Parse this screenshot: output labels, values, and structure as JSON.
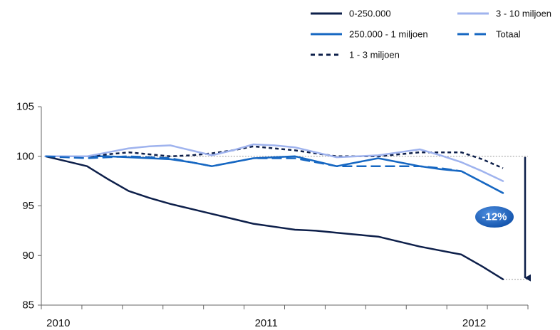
{
  "chart_data": {
    "type": "line",
    "title": "",
    "xlabel": "",
    "ylabel": "",
    "x_labels": [
      "2010",
      "2011",
      "2012"
    ],
    "x_label_positions": [
      0,
      5,
      10
    ],
    "x": [
      0,
      0.5,
      1,
      1.5,
      2,
      2.5,
      3,
      3.5,
      4,
      4.5,
      5,
      5.5,
      6,
      6.5,
      7,
      7.5,
      8,
      8.5,
      9,
      9.5,
      10,
      10.5,
      11
    ],
    "xlim": [
      -0.1,
      11.6
    ],
    "ylim": [
      85,
      105
    ],
    "yticks": [
      "85",
      "90",
      "95",
      "100",
      "105"
    ],
    "series": [
      {
        "name": "0-250.000",
        "color": "#0d1f4a",
        "dash": "solid",
        "width": 2.5,
        "values": [
          100,
          99.5,
          99.0,
          97.7,
          96.5,
          95.8,
          95.2,
          94.7,
          94.2,
          93.7,
          93.2,
          92.9,
          92.6,
          92.5,
          92.3,
          92.1,
          91.9,
          91.4,
          90.9,
          90.5,
          90.1,
          88.9,
          87.6
        ]
      },
      {
        "name": "250.000 - 1 miljoen",
        "color": "#1667c2",
        "dash": "solid",
        "width": 2.5,
        "values": [
          100,
          100.0,
          100.0,
          100.0,
          99.9,
          99.8,
          99.7,
          99.4,
          99.0,
          99.4,
          99.8,
          99.9,
          100.0,
          99.5,
          99.0,
          99.4,
          99.8,
          99.4,
          99.0,
          98.7,
          98.5,
          97.4,
          96.3
        ]
      },
      {
        "name": "1 - 3 miljoen",
        "color": "#0d1f4a",
        "dash": "dotted",
        "width": 2.5,
        "values": [
          100,
          100.0,
          100.0,
          100.2,
          100.4,
          100.2,
          100.0,
          100.1,
          100.3,
          100.6,
          101.0,
          100.8,
          100.6,
          100.3,
          100.0,
          100.0,
          100.0,
          100.2,
          100.4,
          100.4,
          100.4,
          99.7,
          98.8
        ]
      },
      {
        "name": "3 - 10 miljoen",
        "color": "#9fb3ee",
        "dash": "solid",
        "width": 2.5,
        "values": [
          100,
          100.0,
          100.0,
          100.4,
          100.8,
          101.0,
          101.1,
          100.6,
          100.1,
          100.6,
          101.2,
          101.1,
          100.9,
          100.4,
          99.9,
          100.0,
          100.1,
          100.4,
          100.7,
          100.1,
          99.4,
          98.5,
          97.5
        ]
      },
      {
        "name": "Totaal",
        "color": "#1667c2",
        "dash": "dashed",
        "width": 2.5,
        "values": [
          100,
          99.9,
          99.8,
          99.9,
          100.0,
          99.9,
          99.8,
          99.4,
          99.0,
          99.4,
          99.8,
          99.8,
          99.8,
          99.4,
          99.0,
          99.0,
          99.0,
          99.0,
          99.0,
          98.8,
          98.5,
          97.4,
          96.3
        ]
      }
    ],
    "reference_line": {
      "value": 100
    },
    "annotation": {
      "label": "-12%",
      "from": 100,
      "to": 87.6
    },
    "legend_position": "top-right",
    "grid": false
  }
}
